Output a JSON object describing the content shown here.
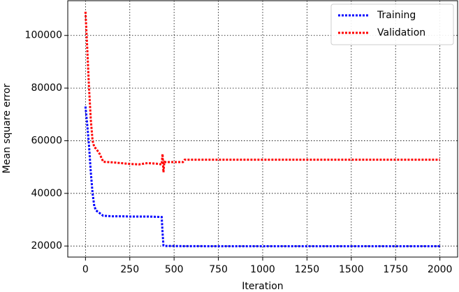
{
  "chart_data": {
    "type": "line",
    "xlabel": "Iteration",
    "ylabel": "Mean square error",
    "x": [
      0,
      10,
      20,
      30,
      40,
      50,
      60,
      80,
      100,
      150,
      200,
      250,
      300,
      350,
      400,
      430,
      435,
      440,
      445,
      450,
      500,
      550,
      560,
      600,
      800,
      1000,
      1200,
      1400,
      1600,
      1800,
      2000
    ],
    "series": [
      {
        "name": "Training",
        "color": "#0000ff",
        "values": [
          73000,
          66000,
          58000,
          48000,
          40000,
          35000,
          33500,
          32500,
          31500,
          31300,
          31300,
          31200,
          31200,
          31200,
          31100,
          31000,
          25000,
          20200,
          20100,
          20000,
          20000,
          19950,
          19950,
          19950,
          19900,
          19900,
          19900,
          19900,
          19900,
          19900,
          19900
        ]
      },
      {
        "name": "Validation",
        "color": "#ff0000",
        "values": [
          109000,
          95000,
          80000,
          68000,
          60000,
          57500,
          57000,
          55000,
          52000,
          51800,
          51500,
          51200,
          51000,
          51500,
          51300,
          51000,
          55000,
          48000,
          52000,
          51900,
          51900,
          51900,
          52800,
          52800,
          52800,
          52800,
          52800,
          52800,
          52800,
          52800,
          52800
        ]
      }
    ],
    "xlim": [
      -100,
      2100
    ],
    "ylim": [
      15800,
      113200
    ],
    "xticks": [
      0,
      250,
      500,
      750,
      1000,
      1250,
      1500,
      1750,
      2000
    ],
    "yticks": [
      20000,
      40000,
      60000,
      80000,
      100000
    ],
    "grid": true,
    "legend": "upper right"
  }
}
